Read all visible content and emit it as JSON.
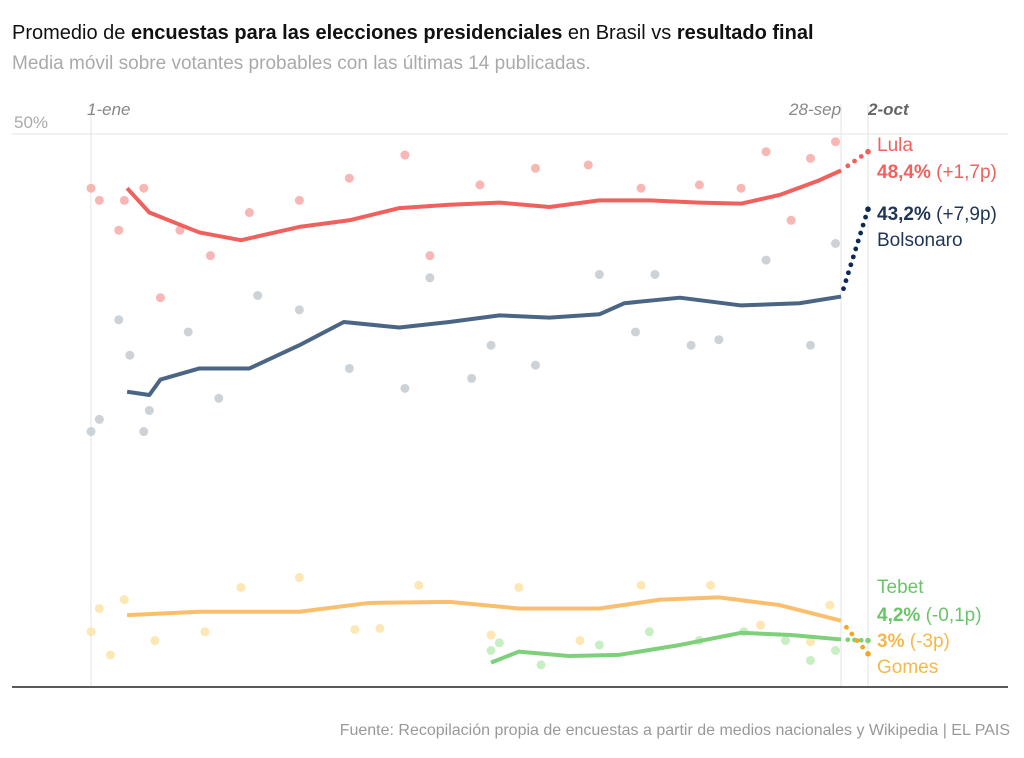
{
  "title": {
    "p1": "Promedio de ",
    "b1": "encuestas para las elecciones presidenciales",
    "p2": " en Brasil vs ",
    "b2": "resultado final"
  },
  "subtitle": "Media móvil sobre votantes probables con las últimas 14 publicadas.",
  "source": "Fuente: Recopilación propia de encuestas a partir de medios nacionales y Wikipedia | EL PAIS",
  "chart_data": {
    "type": "line",
    "x_unit": "days since 1-ene",
    "ylim": [
      0,
      50
    ],
    "y_tick_label": "50%",
    "x_ticks": [
      {
        "day": 0,
        "label": "1-ene"
      },
      {
        "day": 270,
        "label": "28-sep"
      },
      {
        "day": 274,
        "label": "2-oct",
        "bold": true
      }
    ],
    "series": [
      {
        "name": "Lula",
        "color": "#f0605d",
        "poll_color": "#f7a9a7",
        "final": 48.4,
        "final_label": "48,4%",
        "diff_label": "(+1,7p)",
        "average": [
          [
            13,
            45.1
          ],
          [
            21,
            42.9
          ],
          [
            39,
            41.1
          ],
          [
            54,
            40.4
          ],
          [
            75,
            41.6
          ],
          [
            93,
            42.2
          ],
          [
            111,
            43.3
          ],
          [
            129,
            43.6
          ],
          [
            147,
            43.8
          ],
          [
            165,
            43.4
          ],
          [
            183,
            44.0
          ],
          [
            201,
            44.0
          ],
          [
            219,
            43.8
          ],
          [
            234,
            43.7
          ],
          [
            248,
            44.5
          ],
          [
            262,
            45.8
          ],
          [
            270,
            46.7
          ]
        ],
        "polls": [
          [
            0,
            45.1
          ],
          [
            3,
            44
          ],
          [
            10,
            41.3
          ],
          [
            12,
            44
          ],
          [
            19,
            45.1
          ],
          [
            25,
            35.2
          ],
          [
            32,
            41.3
          ],
          [
            43,
            39
          ],
          [
            57,
            42.9
          ],
          [
            75,
            44
          ],
          [
            93,
            46
          ],
          [
            113,
            48.1
          ],
          [
            122,
            39
          ],
          [
            140,
            45.4
          ],
          [
            160,
            46.9
          ],
          [
            179,
            47.2
          ],
          [
            198,
            45.1
          ],
          [
            219,
            45.4
          ],
          [
            234,
            45.1
          ],
          [
            243,
            48.4
          ],
          [
            252,
            42.2
          ],
          [
            259,
            47.8
          ],
          [
            268,
            49.3
          ]
        ]
      },
      {
        "name": "Bolsonaro",
        "color": "#4b6584",
        "final_color": "#0d2a52",
        "poll_color": "#c3cacf",
        "final": 43.2,
        "final_label": "43,2%",
        "diff_label": "(+7,9p)",
        "average": [
          [
            13,
            26.7
          ],
          [
            21,
            26.4
          ],
          [
            25,
            27.8
          ],
          [
            39,
            28.8
          ],
          [
            57,
            28.8
          ],
          [
            75,
            30.9
          ],
          [
            91,
            33.0
          ],
          [
            111,
            32.5
          ],
          [
            129,
            33.0
          ],
          [
            147,
            33.6
          ],
          [
            165,
            33.4
          ],
          [
            183,
            33.7
          ],
          [
            192,
            34.7
          ],
          [
            212,
            35.2
          ],
          [
            234,
            34.5
          ],
          [
            255,
            34.7
          ],
          [
            270,
            35.3
          ]
        ],
        "polls": [
          [
            0,
            23.1
          ],
          [
            3,
            24.2
          ],
          [
            10,
            33.2
          ],
          [
            14,
            30
          ],
          [
            19,
            23.1
          ],
          [
            21,
            25
          ],
          [
            35,
            32.1
          ],
          [
            46,
            26.1
          ],
          [
            60,
            35.4
          ],
          [
            75,
            34.1
          ],
          [
            93,
            28.8
          ],
          [
            113,
            27
          ],
          [
            122,
            37
          ],
          [
            137,
            27.9
          ],
          [
            144,
            30.9
          ],
          [
            160,
            29.1
          ],
          [
            183,
            37.3
          ],
          [
            196,
            32.1
          ],
          [
            203,
            37.3
          ],
          [
            216,
            30.9
          ],
          [
            226,
            31.4
          ],
          [
            243,
            38.6
          ],
          [
            259,
            30.9
          ],
          [
            268,
            40.1
          ]
        ]
      },
      {
        "name": "Tebet",
        "color": "#7ed07a",
        "poll_color": "#bdecb8",
        "final": 4.2,
        "final_label": "4,2%",
        "diff_label": "(-0,1p)",
        "average": [
          [
            144,
            2.2
          ],
          [
            154,
            3.2
          ],
          [
            172,
            2.8
          ],
          [
            190,
            2.9
          ],
          [
            212,
            3.8
          ],
          [
            234,
            4.9
          ],
          [
            252,
            4.7
          ],
          [
            270,
            4.3
          ]
        ],
        "polls": [
          [
            144,
            3.3
          ],
          [
            147,
            4
          ],
          [
            162,
            2
          ],
          [
            183,
            3.8
          ],
          [
            201,
            5
          ],
          [
            219,
            4.2
          ],
          [
            235,
            5
          ],
          [
            250,
            4.2
          ],
          [
            259,
            2.4
          ],
          [
            268,
            3.3
          ]
        ]
      },
      {
        "name": "Gomes",
        "color": "#f9bf6e",
        "final_color": "#f5a623",
        "poll_color": "#fde3a8",
        "final": 3.0,
        "final_label": "3%",
        "diff_label": "(-3p)",
        "average": [
          [
            13,
            6.5
          ],
          [
            39,
            6.8
          ],
          [
            75,
            6.8
          ],
          [
            100,
            7.6
          ],
          [
            129,
            7.7
          ],
          [
            154,
            7.1
          ],
          [
            183,
            7.1
          ],
          [
            205,
            7.9
          ],
          [
            226,
            8.1
          ],
          [
            248,
            7.4
          ],
          [
            270,
            6.0
          ]
        ],
        "polls": [
          [
            0,
            5
          ],
          [
            3,
            7.1
          ],
          [
            7,
            2.9
          ],
          [
            12,
            7.9
          ],
          [
            23,
            4.2
          ],
          [
            41,
            5
          ],
          [
            54,
            9
          ],
          [
            75,
            9.9
          ],
          [
            95,
            5.2
          ],
          [
            104,
            5.3
          ],
          [
            118,
            9.2
          ],
          [
            144,
            4.7
          ],
          [
            154,
            9
          ],
          [
            176,
            4.2
          ],
          [
            198,
            9.2
          ],
          [
            223,
            9.2
          ],
          [
            241,
            5.6
          ],
          [
            259,
            4.1
          ],
          [
            266,
            7.4
          ]
        ]
      }
    ]
  }
}
